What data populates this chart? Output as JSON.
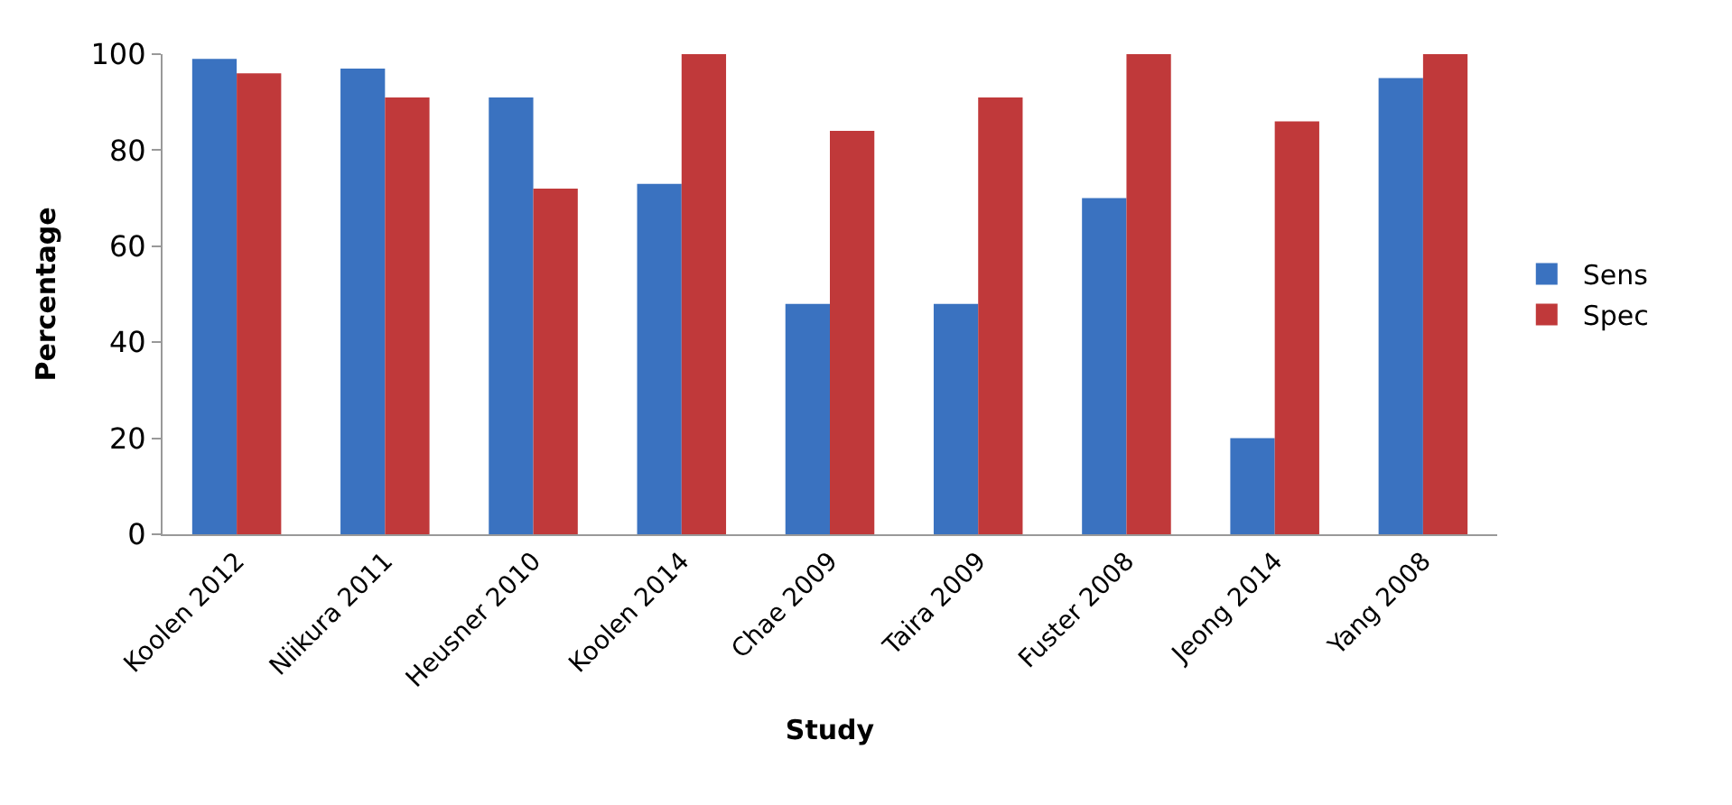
{
  "chart_data": {
    "type": "bar",
    "xlabel": "Study",
    "ylabel": "Percentage",
    "categories": [
      "Koolen 2012",
      "Niikura 2011",
      "Heusner 2010",
      "Koolen 2014",
      "Chae 2009",
      "Taira 2009",
      "Fuster 2008",
      "Jeong 2014",
      "Yang 2008"
    ],
    "series": [
      {
        "name": "Sens",
        "color": "#3a72c0",
        "values": [
          99,
          97,
          91,
          73,
          48,
          48,
          70,
          20,
          95
        ]
      },
      {
        "name": "Spec",
        "color": "#c0393a",
        "values": [
          96,
          91,
          72,
          100,
          84,
          91,
          100,
          86,
          100
        ]
      }
    ],
    "ylim": [
      0,
      100
    ],
    "yticks": [
      0,
      20,
      40,
      60,
      80,
      100
    ],
    "legend": "right"
  }
}
